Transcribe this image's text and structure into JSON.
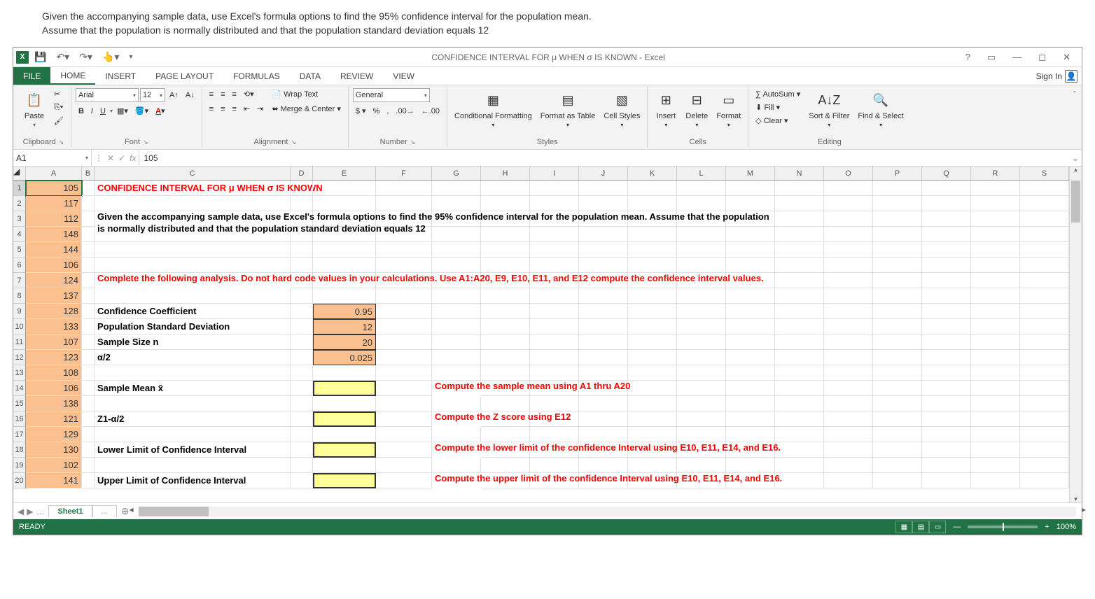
{
  "instruction": {
    "line1": "Given the accompanying sample data, use Excel's formula options to find the 95% confidence interval for the population mean.",
    "line2": "Assume that the population is normally distributed and that the population standard deviation equals 12"
  },
  "titlebar": {
    "title": "CONFIDENCE INTERVAL FOR μ WHEN σ IS KNOWN - Excel"
  },
  "tabs": {
    "file": "FILE",
    "home": "HOME",
    "insert": "INSERT",
    "pagelayout": "PAGE LAYOUT",
    "formulas": "FORMULAS",
    "data": "DATA",
    "review": "REVIEW",
    "view": "VIEW",
    "signin": "Sign In"
  },
  "ribbon": {
    "clipboard": {
      "label": "Clipboard",
      "paste": "Paste"
    },
    "font": {
      "label": "Font",
      "name": "Arial",
      "size": "12",
      "bold": "B",
      "italic": "I",
      "underline": "U"
    },
    "alignment": {
      "label": "Alignment",
      "wrap": "Wrap Text",
      "merge": "Merge & Center"
    },
    "number": {
      "label": "Number",
      "format": "General"
    },
    "styles": {
      "label": "Styles",
      "cond": "Conditional Formatting",
      "table": "Format as Table",
      "cell": "Cell Styles"
    },
    "cells": {
      "label": "Cells",
      "insert": "Insert",
      "delete": "Delete",
      "format": "Format"
    },
    "editing": {
      "label": "Editing",
      "autosum": "AutoSum",
      "fill": "Fill",
      "clear": "Clear",
      "sort": "Sort & Filter",
      "find": "Find & Select"
    }
  },
  "formula_bar": {
    "name_box": "A1",
    "fx": "fx",
    "value": "105"
  },
  "columns": [
    "A",
    "B",
    "C",
    "D",
    "E",
    "F",
    "G",
    "H",
    "I",
    "J",
    "K",
    "L",
    "M",
    "N",
    "O",
    "P",
    "Q",
    "R",
    "S"
  ],
  "dataA": [
    "105",
    "117",
    "112",
    "148",
    "144",
    "106",
    "124",
    "137",
    "128",
    "133",
    "107",
    "123",
    "108",
    "106",
    "138",
    "121",
    "129",
    "130",
    "102",
    "141"
  ],
  "sheet": {
    "title": "CONFIDENCE INTERVAL FOR μ WHEN σ IS KNOWN",
    "given": "Given the accompanying sample data, use Excel's formula options to find the 95% confidence interval for the population mean. Assume that the population is normally distributed and that the population standard deviation equals 12",
    "complete": "Complete the following analysis. Do not hard code values in your calculations.  Use A1:A20, E9, E10, E11, and E12 compute the confidence interval values.",
    "r9": {
      "label": "Confidence Coefficient",
      "val": "0.95"
    },
    "r10": {
      "label": "Population Standard Deviation",
      "val": "12"
    },
    "r11": {
      "label": "Sample Size n",
      "val": "20"
    },
    "r12": {
      "label": "α/2",
      "val": "0.025"
    },
    "r14": {
      "label": "Sample Mean x̄",
      "hint": "Compute the sample mean using A1 thru A20"
    },
    "r16": {
      "label": "Z1-α/2",
      "hint": "Compute the Z score  using E12"
    },
    "r18": {
      "label": "Lower Limit of Confidence Interval",
      "hint": "Compute the lower limit of the confidence Interval using E10, E11, E14, and E16."
    },
    "r20": {
      "label": "Upper Limit of Confidence Interval",
      "hint": "Compute the upper limit of the confidence Interval using E10, E11, E14, and E16."
    }
  },
  "sheet_tabs": {
    "active": "Sheet1",
    "dots": "..."
  },
  "status": {
    "ready": "READY",
    "zoom": "100%"
  }
}
